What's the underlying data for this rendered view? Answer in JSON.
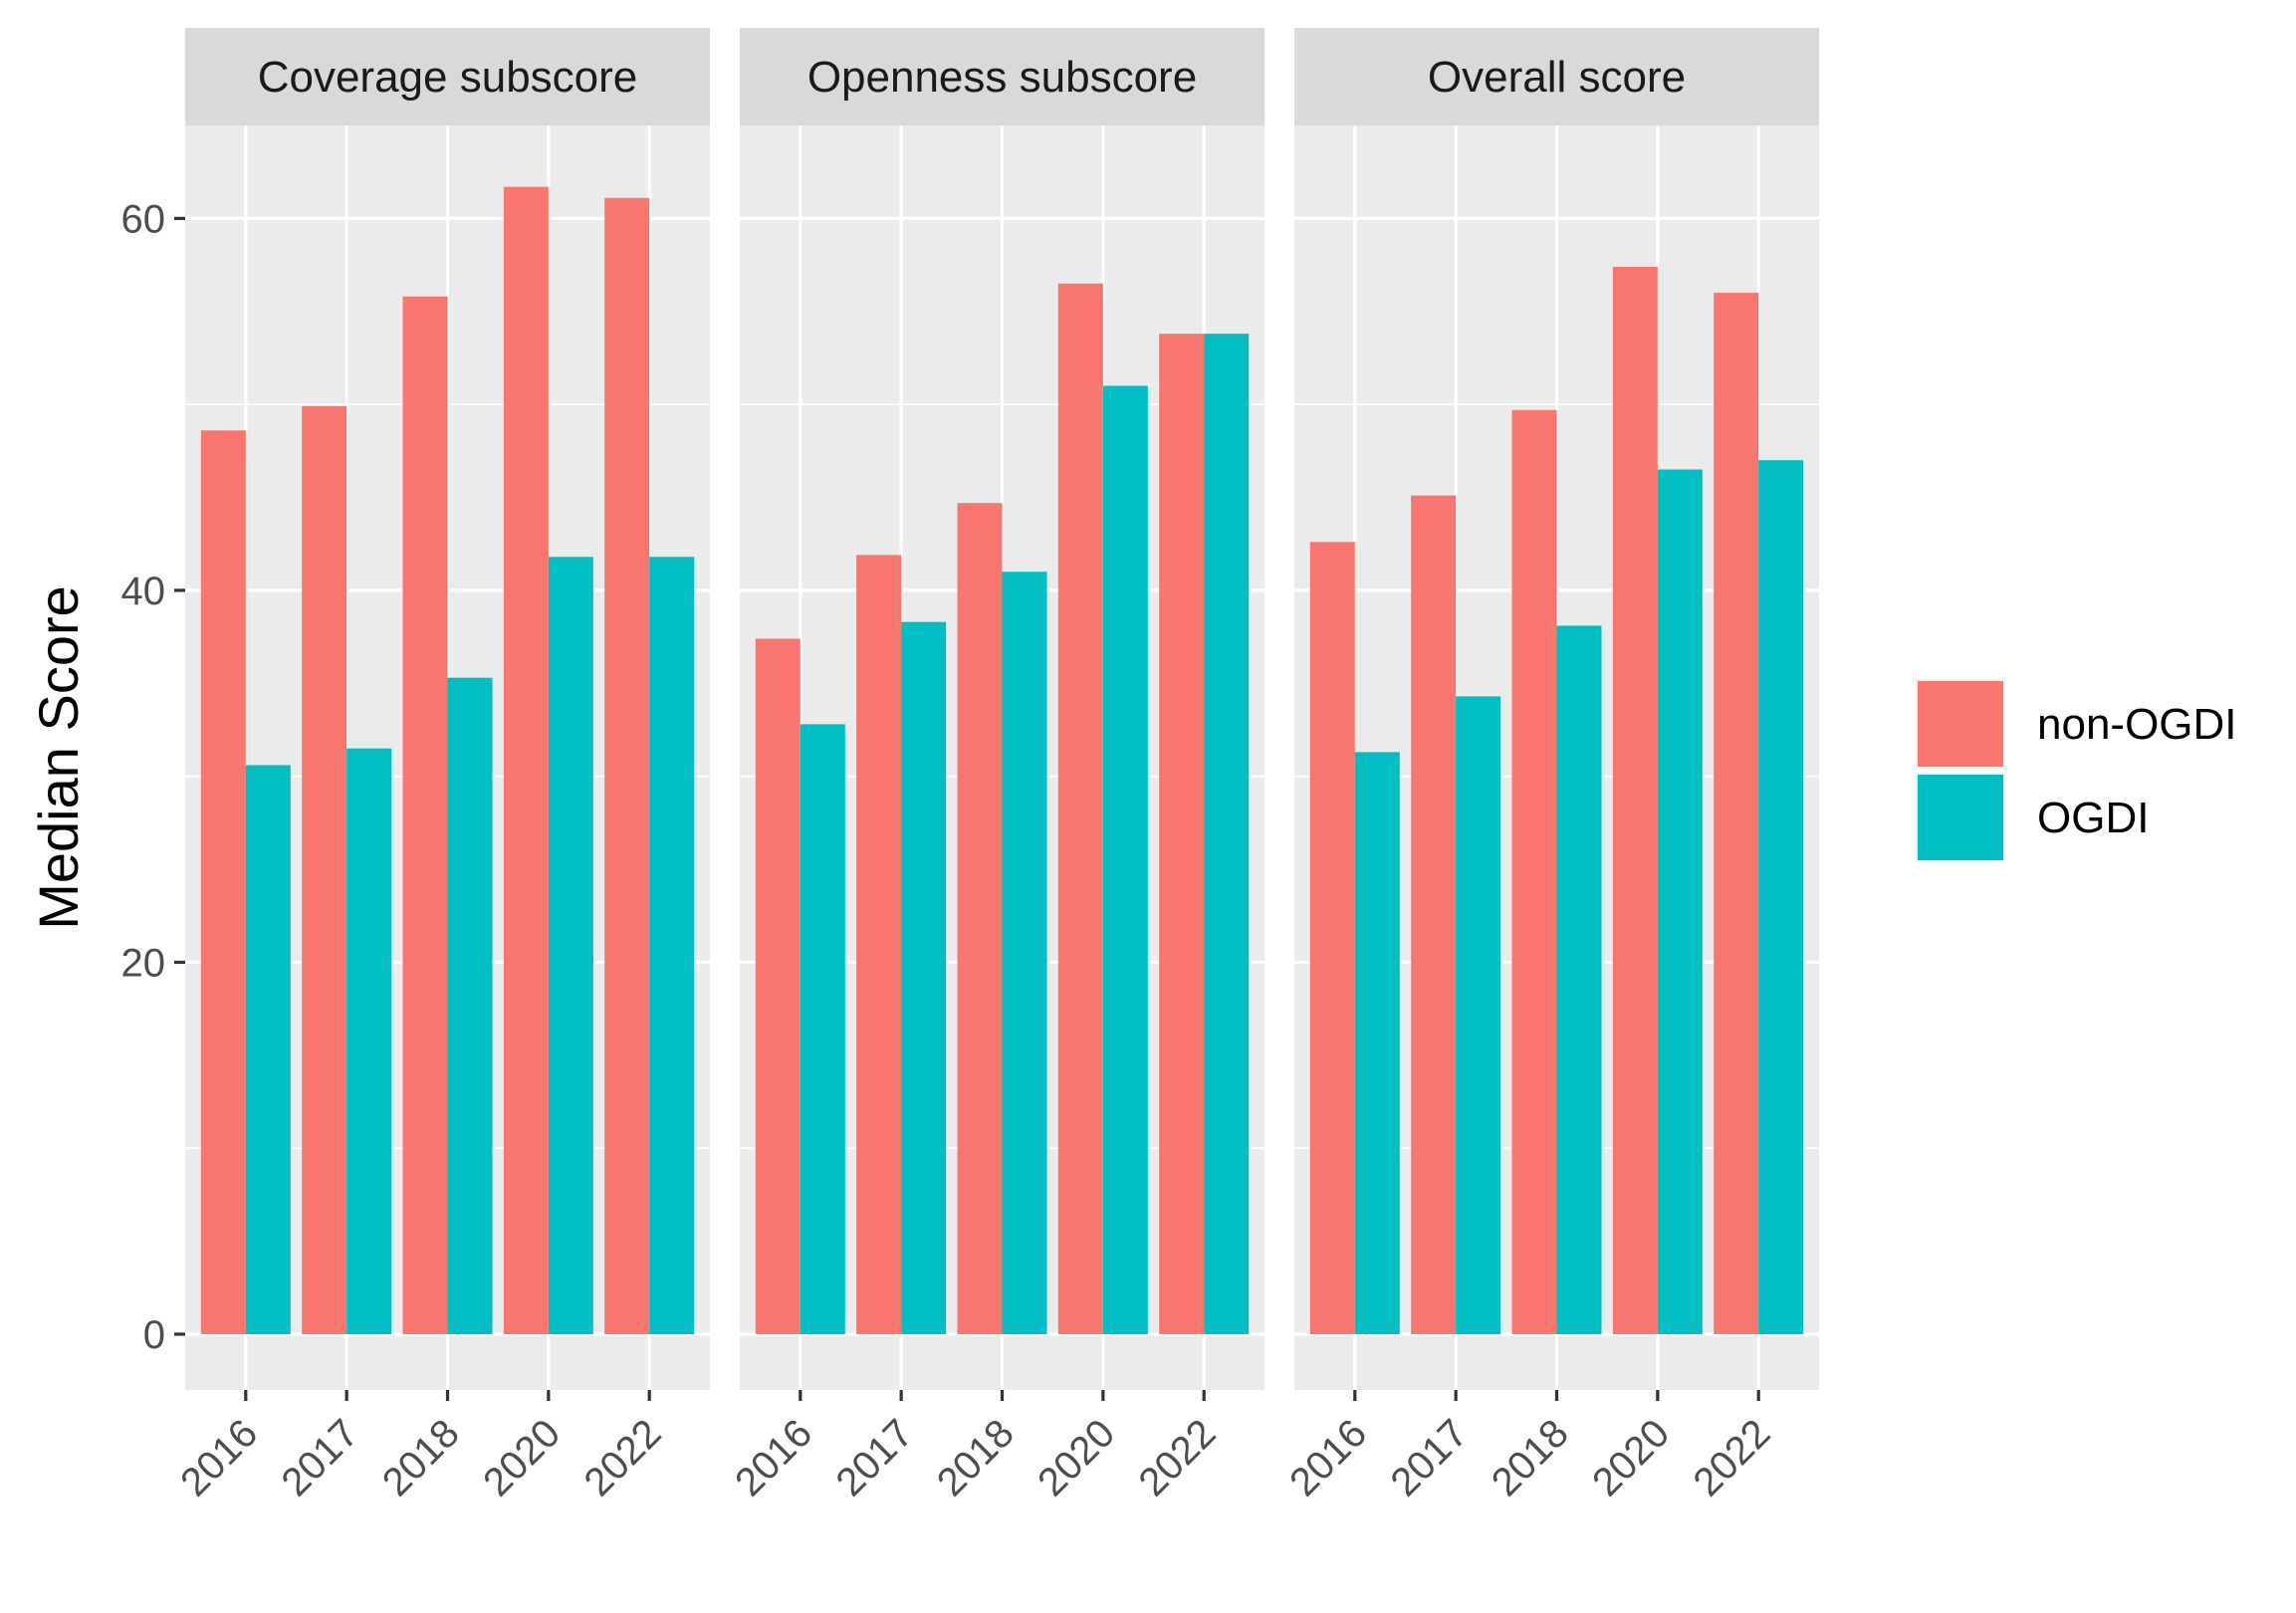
{
  "chart_data": {
    "type": "bar",
    "ylabel": "Median Score",
    "xlabel": "",
    "ylim": [
      -3,
      65
    ],
    "yticks": [
      0,
      20,
      40,
      60
    ],
    "categories": [
      "2016",
      "2017",
      "2018",
      "2020",
      "2022"
    ],
    "legend_position": "right",
    "colors": {
      "non-OGDI": "#F8766D",
      "OGDI": "#00BFC4"
    },
    "grid": true,
    "panels": [
      {
        "title": "Coverage subscore",
        "series": [
          {
            "name": "non-OGDI",
            "values": [
              48.6,
              49.9,
              55.8,
              61.7,
              61.1
            ]
          },
          {
            "name": "OGDI",
            "values": [
              30.6,
              31.5,
              35.3,
              41.8,
              41.8
            ]
          }
        ]
      },
      {
        "title": "Openness subscore",
        "series": [
          {
            "name": "non-OGDI",
            "values": [
              37.4,
              41.9,
              44.7,
              56.5,
              53.8
            ]
          },
          {
            "name": "OGDI",
            "values": [
              32.8,
              38.3,
              41.0,
              51.0,
              53.8
            ]
          }
        ]
      },
      {
        "title": "Overall score",
        "series": [
          {
            "name": "non-OGDI",
            "values": [
              42.6,
              45.1,
              49.7,
              57.4,
              56.0
            ]
          },
          {
            "name": "OGDI",
            "values": [
              31.3,
              34.3,
              38.1,
              46.5,
              47.0
            ]
          }
        ]
      }
    ],
    "legend": [
      "non-OGDI",
      "OGDI"
    ]
  }
}
